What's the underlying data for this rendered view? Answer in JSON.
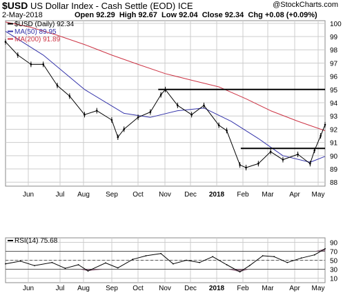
{
  "header": {
    "symbol": "$USD",
    "name": "US Dollar Index - Cash Settle (EOD)",
    "exchange": "ICE",
    "date": "2-May-2018",
    "open_label": "Open",
    "open": "92.29",
    "high_label": "High",
    "high": "92.67",
    "low_label": "Low",
    "low": "92.04",
    "close_label": "Close",
    "close": "92.34",
    "chg_label": "Chg",
    "chg": "+0.08 (+0.09%)",
    "brand": "@StockCharts.com",
    "brand_arrow_color": "#ff6600"
  },
  "colors": {
    "price": "#000000",
    "ma50": "#3333aa",
    "ma200": "#cc3344",
    "rsi": "#000000",
    "rsi_fill": "#7a4a66",
    "grid": "#cccccc",
    "resistance": "#000000"
  },
  "chart_data": [
    {
      "type": "line",
      "title": "$USD US Dollar Index - Cash Settle (EOD) ICE",
      "x_labels": [
        "Jun",
        "Jul",
        "Aug",
        "Sep",
        "Oct",
        "Nov",
        "Dec",
        "2018",
        "Feb",
        "Mar",
        "Apr",
        "May"
      ],
      "y_ticks": [
        88,
        89,
        90,
        91,
        92,
        93,
        94,
        95,
        96,
        97,
        98,
        99,
        100
      ],
      "ylim": [
        87.7,
        100.2
      ],
      "grid": true,
      "legend_placement": "top-left",
      "legend": [
        {
          "text": "$USD (Daily) 92.34",
          "key": "price"
        },
        {
          "text": "MA(50) 89.95",
          "key": "ma50"
        },
        {
          "text": "MA(200) 91.89",
          "key": "ma200"
        }
      ],
      "series": [
        {
          "name": "$USD (Daily)",
          "x": [
            "2017-05-03",
            "2017-05-17",
            "2017-06-01",
            "2017-06-15",
            "2017-07-01",
            "2017-07-15",
            "2017-08-01",
            "2017-08-15",
            "2017-09-01",
            "2017-09-08",
            "2017-09-15",
            "2017-10-01",
            "2017-10-15",
            "2017-10-27",
            "2017-11-01",
            "2017-11-15",
            "2017-12-01",
            "2017-12-15",
            "2018-01-01",
            "2018-01-10",
            "2018-01-25",
            "2018-02-01",
            "2018-02-15",
            "2018-03-01",
            "2018-03-15",
            "2018-04-01",
            "2018-04-15",
            "2018-04-20",
            "2018-04-27",
            "2018-05-02"
          ],
          "values": [
            98.6,
            97.6,
            96.9,
            96.9,
            95.3,
            94.5,
            93.1,
            93.4,
            92.7,
            91.4,
            92.0,
            92.9,
            93.3,
            94.6,
            95.0,
            93.8,
            93.1,
            93.8,
            92.3,
            91.9,
            89.3,
            89.1,
            89.4,
            90.3,
            89.7,
            90.1,
            89.4,
            90.4,
            91.5,
            92.34
          ]
        },
        {
          "name": "MA(50)",
          "x": [
            "2017-05-03",
            "2017-06-15",
            "2017-08-01",
            "2017-09-15",
            "2017-10-15",
            "2017-11-15",
            "2017-12-15",
            "2018-01-15",
            "2018-02-15",
            "2018-03-15",
            "2018-04-15",
            "2018-05-02"
          ],
          "values": [
            99.4,
            97.6,
            95.0,
            93.2,
            92.9,
            93.4,
            93.6,
            92.6,
            91.3,
            90.0,
            89.5,
            89.95
          ]
        },
        {
          "name": "MA(200)",
          "x": [
            "2017-05-03",
            "2017-06-01",
            "2017-07-01",
            "2017-08-01",
            "2017-09-01",
            "2017-10-01",
            "2017-11-01",
            "2017-12-01",
            "2018-01-01",
            "2018-02-01",
            "2018-03-01",
            "2018-04-01",
            "2018-05-02"
          ],
          "values": [
            100.1,
            99.7,
            99.1,
            98.4,
            97.6,
            96.9,
            96.2,
            95.7,
            95.2,
            94.3,
            93.4,
            92.6,
            91.89
          ]
        },
        {
          "name": "Resistance line",
          "x": [
            "2017-10-24",
            "2018-05-02"
          ],
          "values": [
            95.0,
            95.0
          ]
        },
        {
          "name": "Support line",
          "x": [
            "2018-01-26",
            "2018-05-02"
          ],
          "values": [
            90.55,
            90.55
          ]
        }
      ]
    },
    {
      "type": "line",
      "title": "RSI(14) 75.68",
      "x_labels": [
        "Jun",
        "Jul",
        "Aug",
        "Sep",
        "Oct",
        "Nov",
        "Dec",
        "2018",
        "Feb",
        "Mar",
        "Apr",
        "May"
      ],
      "y_ticks": [
        10,
        30,
        50,
        70,
        90
      ],
      "ylim": [
        0,
        100
      ],
      "reference_lines": [
        30,
        50,
        70
      ],
      "grid": true,
      "legend_placement": "top-left",
      "series": [
        {
          "name": "RSI(14)",
          "x": [
            "2017-05-03",
            "2017-05-20",
            "2017-06-05",
            "2017-06-25",
            "2017-07-10",
            "2017-07-25",
            "2017-08-05",
            "2017-08-25",
            "2017-09-08",
            "2017-09-25",
            "2017-10-10",
            "2017-10-27",
            "2017-11-10",
            "2017-11-25",
            "2017-12-10",
            "2017-12-25",
            "2018-01-10",
            "2018-01-25",
            "2018-02-05",
            "2018-02-20",
            "2018-03-05",
            "2018-03-20",
            "2018-04-05",
            "2018-04-20",
            "2018-05-02"
          ],
          "values": [
            42,
            48,
            38,
            45,
            32,
            40,
            26,
            44,
            33,
            52,
            60,
            65,
            42,
            50,
            45,
            58,
            40,
            24,
            38,
            60,
            58,
            45,
            55,
            62,
            75.68
          ]
        }
      ]
    }
  ]
}
